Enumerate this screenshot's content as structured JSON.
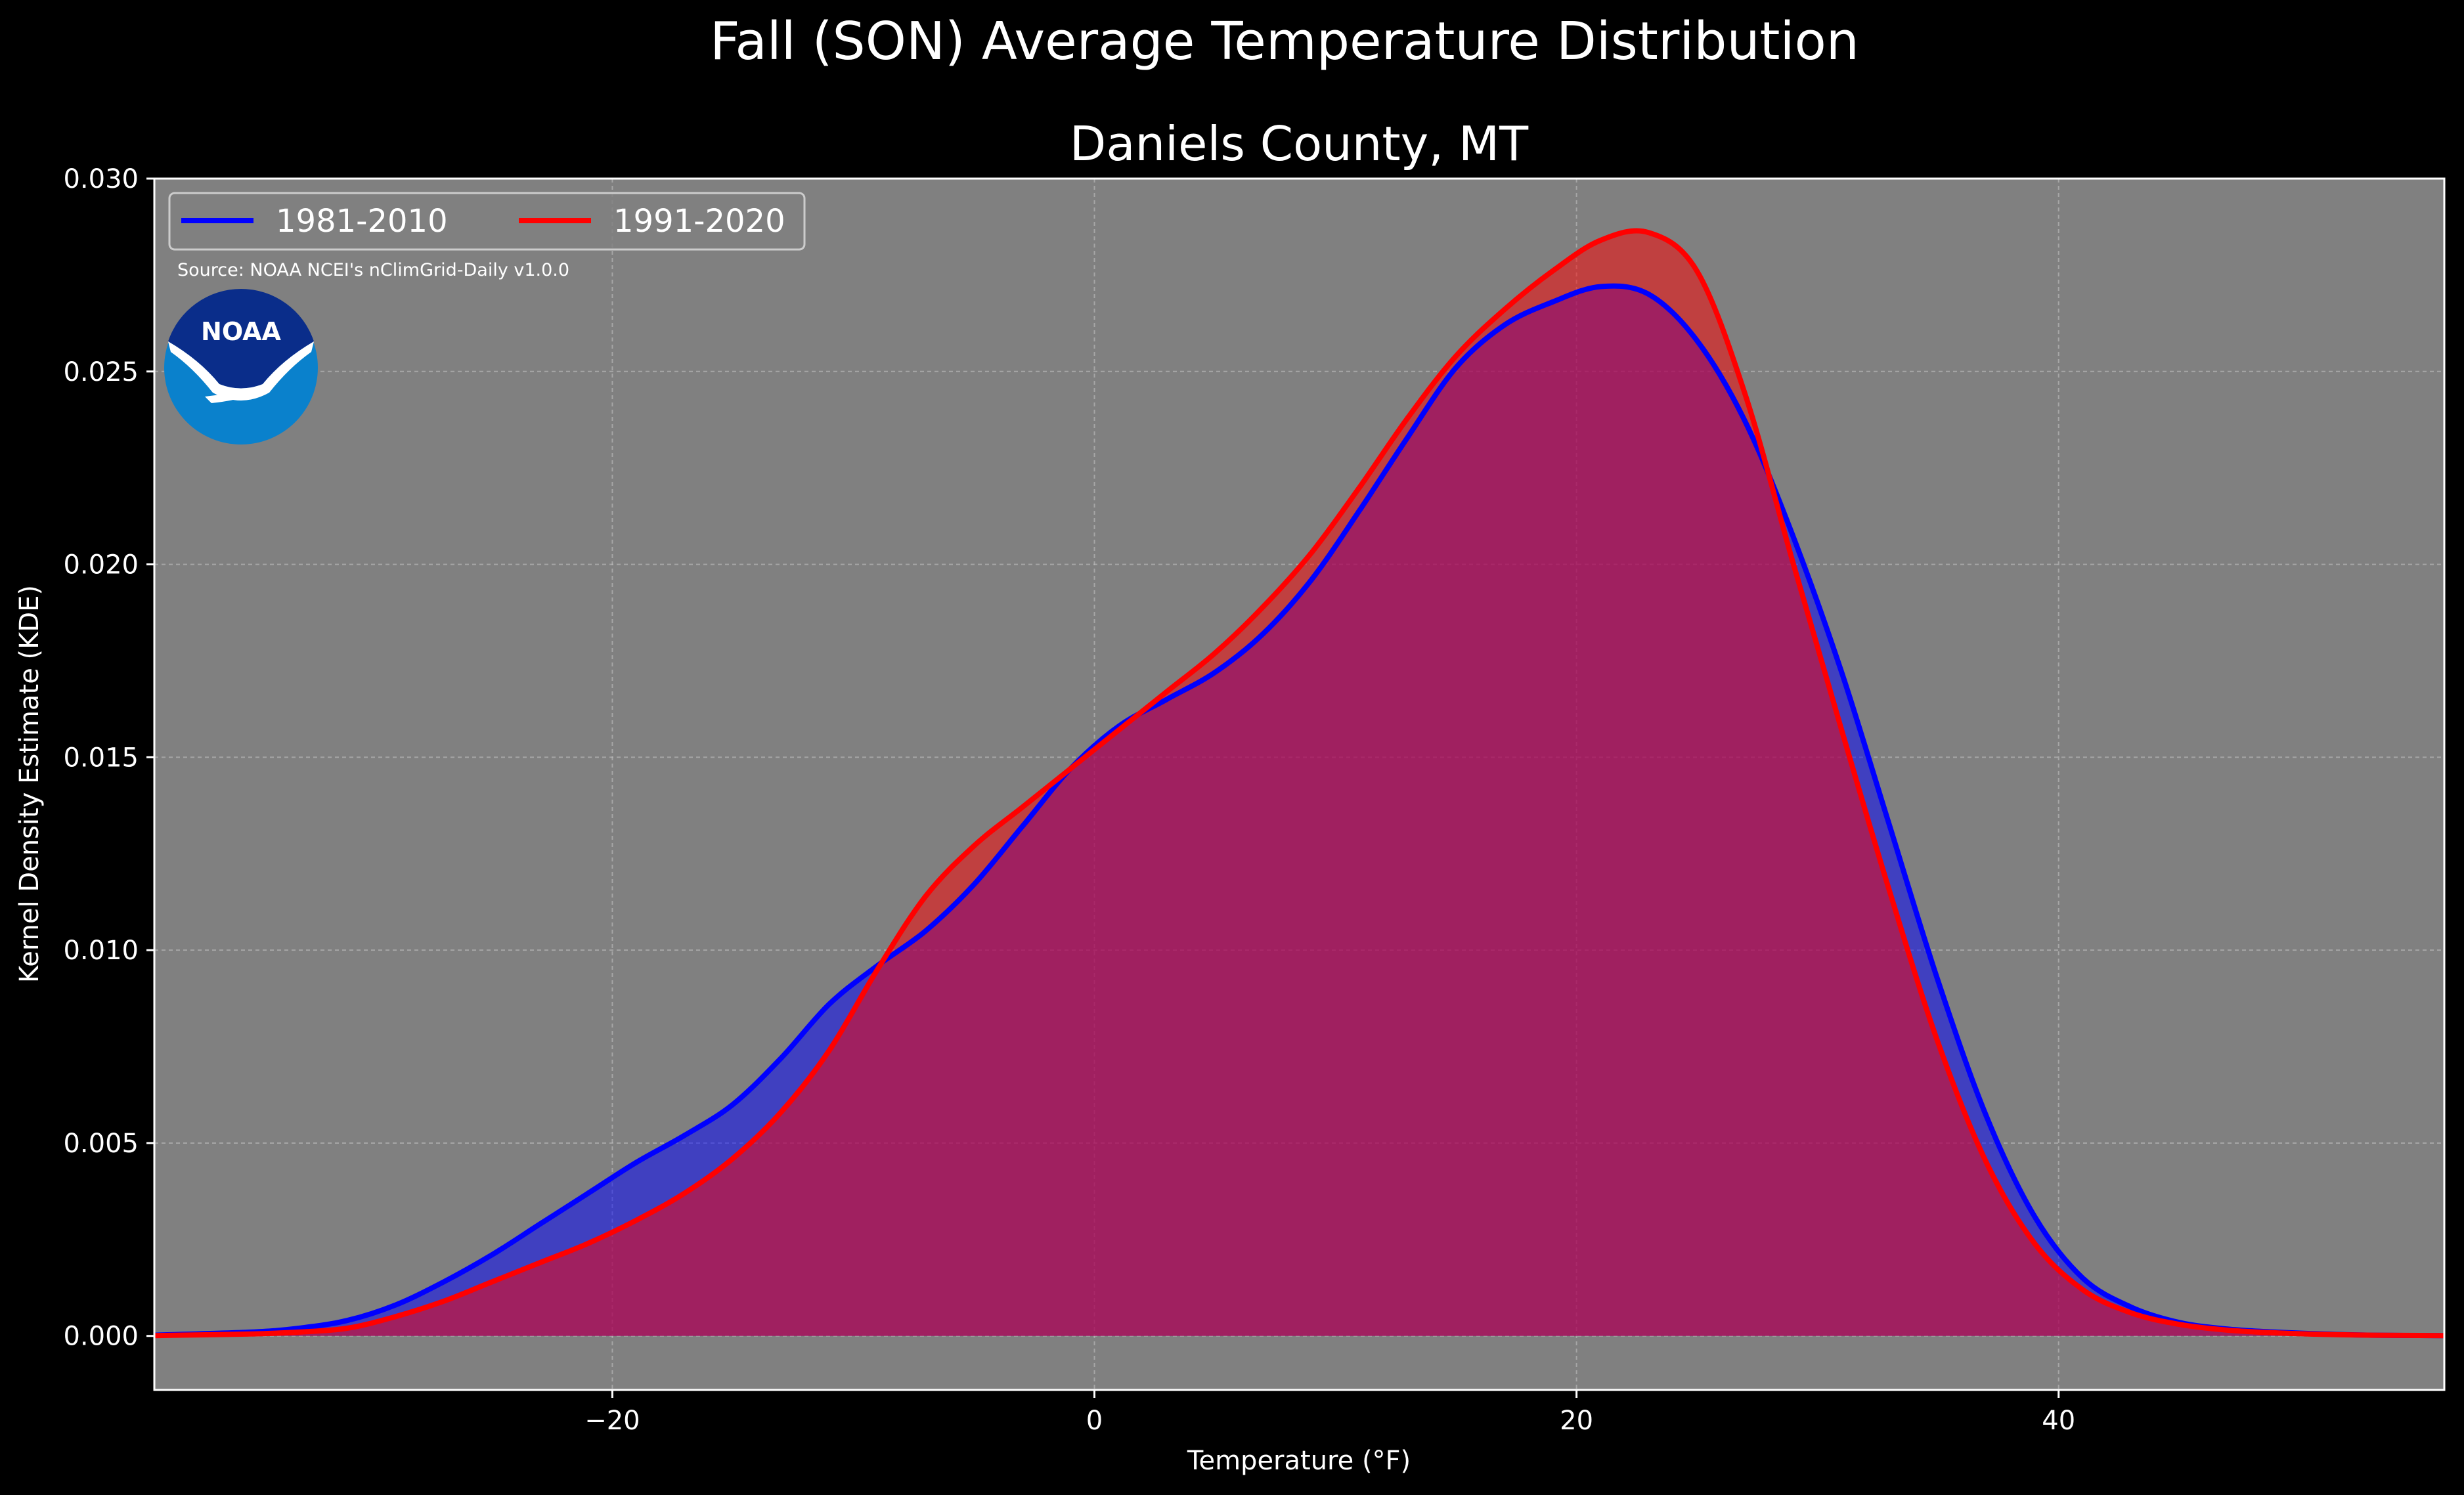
{
  "colors": {
    "figure_background": "#000000",
    "plot_background": "#808080",
    "grid": "#c0c0c0",
    "text": "#ffffff"
  },
  "source_note": "Source: NOAA NCEI's nClimGrid-Daily v1.0.0",
  "logo": {
    "text": "NOAA",
    "icon": "noaa-logo-icon"
  },
  "chart_data": {
    "type": "area",
    "title": "Fall (SON) Average Temperature Distribution",
    "subtitle": "Daniels County, MT",
    "xlabel": "Temperature (°F)",
    "ylabel": "Kernel Density Estimate (KDE)",
    "xlim": [
      -39,
      56
    ],
    "ylim": [
      -0.0014,
      0.03
    ],
    "xticks": [
      -20,
      0,
      20,
      40
    ],
    "xtick_labels": [
      "−20",
      "0",
      "20",
      "40"
    ],
    "yticks": [
      0.0,
      0.005,
      0.01,
      0.015,
      0.02,
      0.025,
      0.03
    ],
    "ytick_labels": [
      "0.000",
      "0.005",
      "0.010",
      "0.015",
      "0.020",
      "0.025",
      "0.030"
    ],
    "grid": true,
    "legend": {
      "placement": "top-left",
      "ncol": 2
    },
    "series": [
      {
        "name": "1981-2010",
        "color": "#0000ff",
        "fill_color": "#0000ff",
        "x": [
          -39,
          -35,
          -33,
          -31,
          -29,
          -27,
          -25,
          -23,
          -21,
          -19,
          -17,
          -15,
          -13,
          -11,
          -9,
          -7,
          -5,
          -3,
          -1,
          1,
          3,
          5,
          7,
          9,
          11,
          13,
          15,
          17,
          19,
          21,
          23,
          25,
          27,
          29,
          31,
          33,
          35,
          37,
          39,
          41,
          43,
          45,
          47,
          49,
          51,
          53,
          56
        ],
        "y": [
          2e-05,
          0.0001,
          0.0002,
          0.0004,
          0.0008,
          0.0014,
          0.0021,
          0.0029,
          0.0037,
          0.0045,
          0.0052,
          0.006,
          0.0072,
          0.0086,
          0.0096,
          0.0105,
          0.0117,
          0.0132,
          0.0147,
          0.0158,
          0.0165,
          0.0172,
          0.0182,
          0.0196,
          0.0214,
          0.0233,
          0.0251,
          0.0262,
          0.0268,
          0.0272,
          0.027,
          0.0258,
          0.0237,
          0.0207,
          0.0172,
          0.0132,
          0.0092,
          0.0057,
          0.0031,
          0.0015,
          0.00075,
          0.00035,
          0.00018,
          0.0001,
          5e-05,
          2e-05,
          1e-05
        ]
      },
      {
        "name": "1991-2020",
        "color": "#ff0000",
        "fill_color": "#ff0000",
        "x": [
          -39,
          -35,
          -33,
          -31,
          -29,
          -27,
          -25,
          -23,
          -21,
          -19,
          -17,
          -15,
          -13,
          -11,
          -9,
          -7,
          -5,
          -3,
          -1,
          1,
          3,
          5,
          7,
          9,
          11,
          13,
          15,
          17,
          19,
          21,
          23,
          25,
          27,
          29,
          31,
          33,
          35,
          37,
          39,
          41,
          43,
          45,
          47,
          49,
          51,
          53,
          56
        ],
        "y": [
          1e-05,
          5e-05,
          0.0001,
          0.0002,
          0.0005,
          0.0009,
          0.0014,
          0.0019,
          0.0024,
          0.003,
          0.0037,
          0.0046,
          0.0058,
          0.0074,
          0.0095,
          0.0114,
          0.0127,
          0.0137,
          0.0147,
          0.0157,
          0.0167,
          0.0177,
          0.0189,
          0.0203,
          0.022,
          0.0238,
          0.0254,
          0.0266,
          0.0276,
          0.0284,
          0.0286,
          0.0276,
          0.0244,
          0.02,
          0.0157,
          0.0115,
          0.0076,
          0.0045,
          0.0024,
          0.0012,
          0.0006,
          0.0003,
          0.00015,
          8e-05,
          4e-05,
          2e-05,
          1e-05
        ]
      }
    ]
  }
}
